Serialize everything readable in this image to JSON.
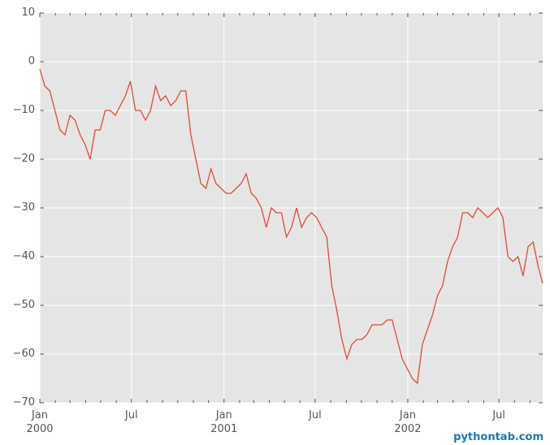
{
  "chart_data": {
    "type": "line",
    "x": [
      0,
      10,
      20,
      30,
      40,
      50,
      60,
      70,
      80,
      90,
      100,
      110,
      120,
      130,
      140,
      150,
      160,
      170,
      180,
      190,
      200,
      210,
      220,
      230,
      240,
      250,
      260,
      270,
      280,
      290,
      300,
      310,
      320,
      330,
      340,
      350,
      360,
      370,
      380,
      390,
      400,
      410,
      420,
      430,
      440,
      450,
      460,
      470,
      480,
      490,
      500,
      510,
      520,
      530,
      540,
      550,
      560,
      570,
      580,
      590,
      600,
      610,
      620,
      630,
      640,
      650,
      660,
      670,
      680,
      690,
      700,
      710,
      720,
      730,
      740,
      750,
      760,
      770,
      780,
      790,
      800,
      810,
      820,
      830,
      840,
      850,
      860,
      870,
      880,
      890,
      900,
      910,
      920,
      930,
      940,
      950,
      960,
      970,
      980,
      990,
      999
    ],
    "series": [
      {
        "color": "#e24a33",
        "values": [
          -1.5,
          -5,
          -6,
          -10,
          -14,
          -15,
          -11,
          -12,
          -15,
          -17,
          -20,
          -14,
          -14,
          -10,
          -10,
          -11,
          -9,
          -7,
          -4,
          -10,
          -10,
          -12,
          -10,
          -5,
          -8,
          -7,
          -9,
          -8,
          -6,
          -6,
          -15,
          -20,
          -25,
          -26,
          -22,
          -25,
          -26,
          -27,
          -27,
          -26,
          -25,
          -23,
          -27,
          -28,
          -30,
          -34,
          -30,
          -31,
          -31,
          -36,
          -34,
          -30,
          -34,
          -32,
          -31,
          -32,
          -34,
          -36,
          -46,
          -51,
          -57,
          -61,
          -58,
          -57,
          -57,
          -56,
          -54,
          -54,
          -54,
          -53,
          -53,
          -57,
          -61,
          -63,
          -65,
          -66,
          -58,
          -55,
          -52,
          -48,
          -46,
          -41,
          -38,
          -36,
          -31,
          -31,
          -32,
          -30,
          -31,
          -32,
          -31,
          -30,
          -32,
          -40,
          -41,
          -40,
          -44,
          -38,
          -37,
          -42,
          -45.5
        ]
      }
    ],
    "xlim": [
      0,
      999
    ],
    "xticks": [
      {
        "value": 0,
        "label": "Jan\n2000"
      },
      {
        "value": 182,
        "label": "Jul"
      },
      {
        "value": 366,
        "label": "Jan\n2001"
      },
      {
        "value": 547,
        "label": "Jul"
      },
      {
        "value": 731,
        "label": "Jan\n2002"
      },
      {
        "value": 912,
        "label": "Jul"
      }
    ],
    "xminorticks": [
      31,
      60,
      91,
      121,
      152,
      213,
      244,
      274,
      305,
      335,
      397,
      425,
      456,
      486,
      517,
      578,
      609,
      639,
      670,
      700,
      762,
      790,
      821,
      851,
      882,
      943,
      974
    ],
    "ylim": [
      -70,
      10
    ],
    "yticks": [
      10,
      0,
      {
        "value": -10,
        "label": "−10"
      },
      {
        "value": -20,
        "label": "−20"
      },
      {
        "value": -30,
        "label": "−30"
      },
      {
        "value": -40,
        "label": "−40"
      },
      {
        "value": -50,
        "label": "−50"
      },
      {
        "value": -60,
        "label": "−60"
      },
      {
        "value": -70,
        "label": "−70"
      }
    ],
    "grid": true,
    "watermark": "pythontab.com"
  }
}
